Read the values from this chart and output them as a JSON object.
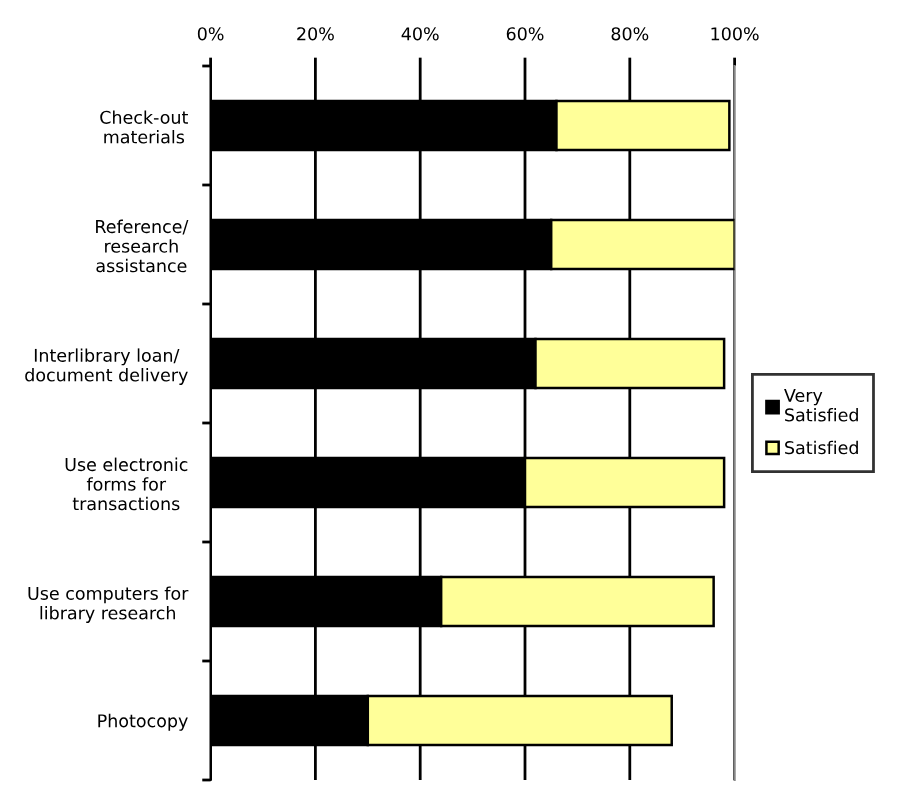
{
  "chart_data": {
    "type": "bar",
    "orientation": "horizontal",
    "stacked": true,
    "categories": [
      "Check-out\nmaterials",
      "Reference/\nresearch\nassistance",
      "Interlibrary loan/\ndocument delivery",
      "Use electronic\nforms for\ntransactions",
      "Use computers for\nlibrary research",
      "Photocopy"
    ],
    "series": [
      {
        "name": "Very\nSatisfied",
        "color": "#000000",
        "values": [
          66,
          65,
          62,
          60,
          44,
          30
        ]
      },
      {
        "name": "Satisfied",
        "color": "#ffff99",
        "values": [
          33,
          35,
          36,
          38,
          52,
          58
        ]
      }
    ],
    "xlim": [
      0,
      100
    ],
    "xticks": [
      {
        "value": 0,
        "label": "0%"
      },
      {
        "value": 20,
        "label": "20%"
      },
      {
        "value": 40,
        "label": "40%"
      },
      {
        "value": 60,
        "label": "60%"
      },
      {
        "value": 80,
        "label": "80%"
      },
      {
        "value": 100,
        "label": "100%"
      }
    ],
    "grid": "x",
    "legend": "right"
  }
}
